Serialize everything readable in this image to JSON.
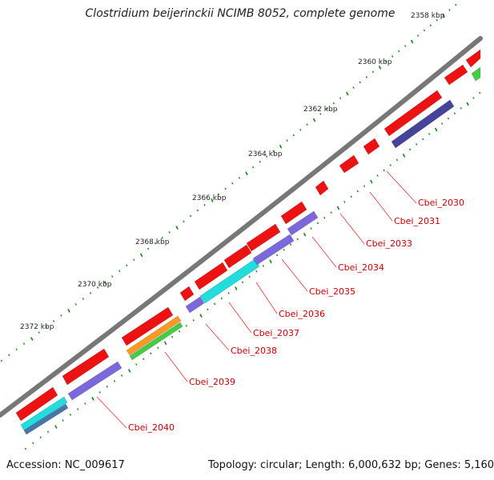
{
  "title": "Clostridium beijerinckii NCIMB 8052, complete genome",
  "accession": "Accession: NC_009617",
  "summary": "Topology: circular; Length: 6,000,632 bp; Genes: 5,160",
  "scale_labels": [
    "2358 kbp",
    "2360 kbp",
    "2362 kbp",
    "2364 kbp",
    "2366 kbp",
    "2368 kbp",
    "2370 kbp",
    "2372 kbp"
  ],
  "gene_labels": [
    "Cbei_2030",
    "Cbei_2031",
    "Cbei_2033",
    "Cbei_2034",
    "Cbei_2035",
    "Cbei_2036",
    "Cbei_2037",
    "Cbei_2038",
    "Cbei_2039",
    "Cbei_2040"
  ],
  "colors": {
    "backbone": "#777777",
    "cds_forward": "#ee1111",
    "cog_purple": "#7b68dd",
    "cog_dark_purple": "#44449a",
    "cog_cyan": "#22dddd",
    "cog_orange": "#ff9922",
    "cog_green": "#44cc44",
    "cog_steel": "#4477aa",
    "tick": "#118811",
    "label": "#cc0000",
    "leader": "#ee3333"
  }
}
